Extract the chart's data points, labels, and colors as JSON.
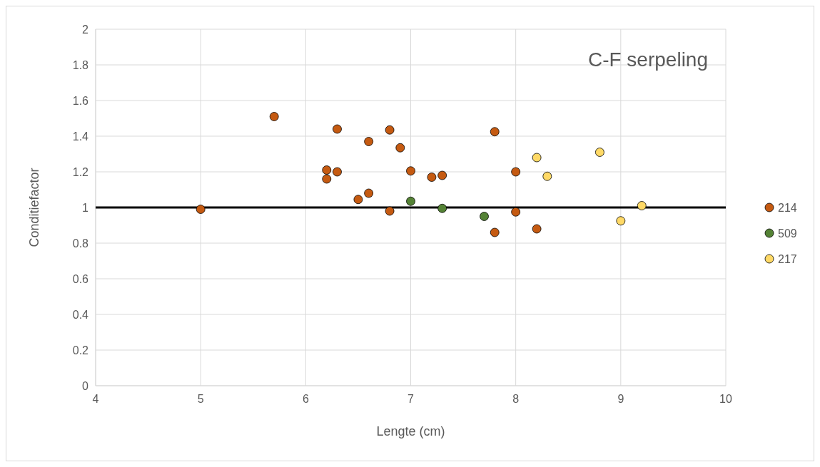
{
  "chart_data": {
    "type": "scatter",
    "title": "C-F serpeling",
    "xlabel": "Lengte (cm)",
    "ylabel": "Conditiefactor",
    "xlim": [
      4,
      10
    ],
    "xticks": [
      4,
      5,
      6,
      7,
      8,
      9,
      10
    ],
    "ylim": [
      0,
      2
    ],
    "yticks": [
      0,
      0.2,
      0.4,
      0.6,
      0.8,
      1,
      1.2,
      1.4,
      1.6,
      1.8,
      2
    ],
    "grid": true,
    "legend": "right",
    "marker": "circle",
    "ref_lines": [
      {
        "axis": "y",
        "value": 1,
        "color": "#000000",
        "line_style": "solid"
      }
    ],
    "series": [
      {
        "name": "214",
        "color": "#c55a11",
        "x": [
          5,
          5.7,
          6.3,
          6.2,
          6.2,
          6.3,
          6.5,
          6.6,
          6.6,
          6.8,
          6.8,
          6.9,
          7,
          7.2,
          7.3,
          7.8,
          7.8,
          8,
          8,
          8.2
        ],
        "values": [
          0.99,
          1.51,
          1.44,
          1.21,
          1.16,
          1.2,
          1.045,
          1.37,
          1.08,
          1.435,
          0.98,
          1.335,
          1.205,
          1.17,
          1.18,
          1.425,
          0.86,
          1.2,
          0.975,
          0.88
        ]
      },
      {
        "name": "509",
        "color": "#548235",
        "x": [
          7,
          7.3,
          7.7
        ],
        "values": [
          1.035,
          0.995,
          0.95
        ]
      },
      {
        "name": "217",
        "color": "#ffd966",
        "x": [
          8.2,
          8.3,
          8.8,
          9,
          9.2
        ],
        "values": [
          1.28,
          1.175,
          1.31,
          0.925,
          1.01
        ]
      }
    ]
  }
}
